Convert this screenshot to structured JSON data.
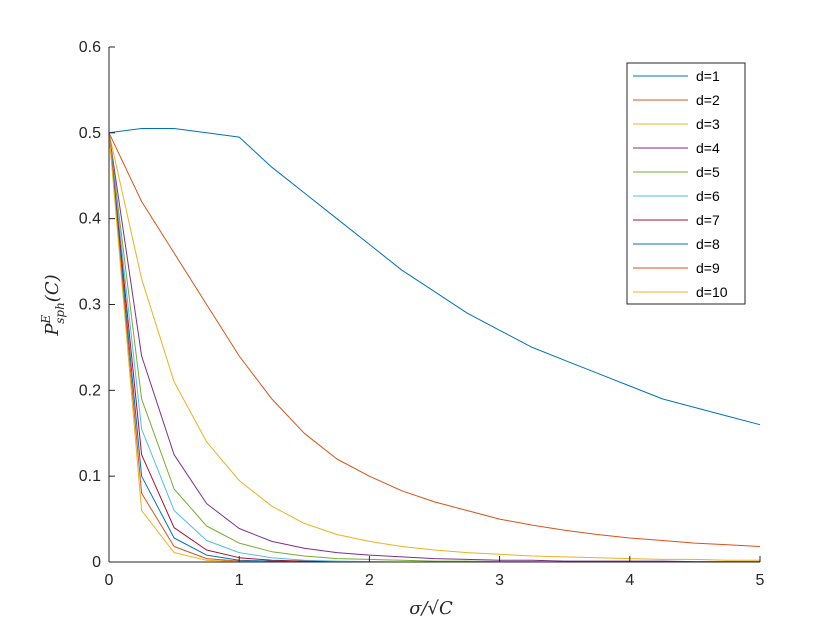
{
  "chart_data": {
    "type": "line",
    "xlabel": "σ/√C",
    "ylabel": "P_sph^E(C)",
    "xlim": [
      0,
      5
    ],
    "ylim": [
      0,
      0.6
    ],
    "xticks": [
      "0",
      "1",
      "2",
      "3",
      "4",
      "5"
    ],
    "yticks": [
      "0",
      "0.1",
      "0.2",
      "0.3",
      "0.4",
      "0.5",
      "0.6"
    ],
    "grid": false,
    "legend_position": "top-right",
    "x_step": 0.25,
    "series": [
      {
        "name": "d=1",
        "color": "#0072BD",
        "values": [
          0.5,
          0.505,
          0.505,
          0.5,
          0.495,
          0.46,
          0.43,
          0.4,
          0.37,
          0.34,
          0.315,
          0.29,
          0.27,
          0.25,
          0.235,
          0.22,
          0.205,
          0.19,
          0.18,
          0.17,
          0.16
        ]
      },
      {
        "name": "d=2",
        "color": "#D95319",
        "values": [
          0.5,
          0.42,
          0.36,
          0.3,
          0.24,
          0.19,
          0.15,
          0.12,
          0.1,
          0.083,
          0.07,
          0.06,
          0.05,
          0.043,
          0.037,
          0.032,
          0.028,
          0.025,
          0.022,
          0.02,
          0.018
        ]
      },
      {
        "name": "d=3",
        "color": "#EDB120",
        "values": [
          0.5,
          0.33,
          0.21,
          0.14,
          0.095,
          0.065,
          0.045,
          0.032,
          0.024,
          0.018,
          0.014,
          0.011,
          0.009,
          0.007,
          0.006,
          0.005,
          0.004,
          0.003,
          0.003,
          0.002,
          0.002
        ]
      },
      {
        "name": "d=4",
        "color": "#7E2F8E",
        "values": [
          0.5,
          0.24,
          0.125,
          0.068,
          0.039,
          0.024,
          0.016,
          0.011,
          0.008,
          0.006,
          0.004,
          0.003,
          0.002,
          0.002,
          0.001,
          0.001,
          0.001,
          0.001,
          0.0005,
          0.0005,
          0.0005
        ]
      },
      {
        "name": "d=5",
        "color": "#77AC30",
        "values": [
          0.5,
          0.19,
          0.085,
          0.042,
          0.022,
          0.012,
          0.007,
          0.004,
          0.003,
          0.002,
          0.001,
          0.001,
          0.0005,
          0.0005,
          0,
          0,
          0,
          0,
          0,
          0,
          0
        ]
      },
      {
        "name": "d=6",
        "color": "#4DBEEE",
        "values": [
          0.5,
          0.155,
          0.06,
          0.025,
          0.011,
          0.005,
          0.002,
          0.001,
          0.0005,
          0,
          0,
          0,
          0,
          0,
          0,
          0,
          0,
          0,
          0,
          0,
          0
        ]
      },
      {
        "name": "d=7",
        "color": "#A2142F",
        "values": [
          0.5,
          0.125,
          0.04,
          0.014,
          0.005,
          0.002,
          0.001,
          0,
          0,
          0,
          0,
          0,
          0,
          0,
          0,
          0,
          0,
          0,
          0,
          0,
          0
        ]
      },
      {
        "name": "d=8",
        "color": "#0072BD",
        "values": [
          0.5,
          0.1,
          0.028,
          0.008,
          0.002,
          0.001,
          0,
          0,
          0,
          0,
          0,
          0,
          0,
          0,
          0,
          0,
          0,
          0,
          0,
          0,
          0
        ]
      },
      {
        "name": "d=9",
        "color": "#D95319",
        "values": [
          0.5,
          0.08,
          0.018,
          0.004,
          0.001,
          0,
          0,
          0,
          0,
          0,
          0,
          0,
          0,
          0,
          0,
          0,
          0,
          0,
          0,
          0,
          0
        ]
      },
      {
        "name": "d=10",
        "color": "#EDB120",
        "values": [
          0.5,
          0.06,
          0.011,
          0.002,
          0.0005,
          0,
          0,
          0,
          0,
          0,
          0,
          0,
          0,
          0,
          0,
          0,
          0,
          0,
          0,
          0,
          0
        ]
      }
    ]
  }
}
